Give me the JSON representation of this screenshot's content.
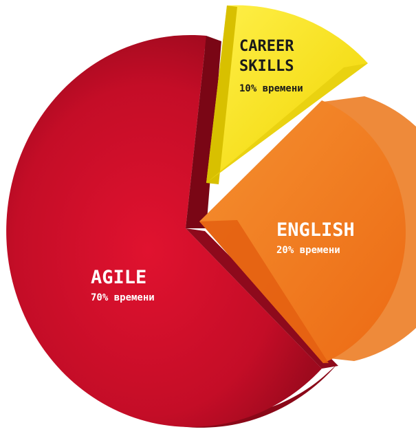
{
  "chart_data": {
    "type": "pie",
    "slices": [
      {
        "label": "AGILE",
        "sublabel": "70% времени",
        "value": 70,
        "color": "#c8102e",
        "text_color": "#ffffff"
      },
      {
        "label": "ENGLISH",
        "sublabel": "20% времени",
        "value": 20,
        "color": "#f07a1e",
        "text_color": "#ffffff"
      },
      {
        "label": "CAREER SKILLS",
        "label_lines": [
          "CAREER",
          "SKILLS"
        ],
        "sublabel": "10% времени",
        "value": 10,
        "color": "#f5e020",
        "text_color": "#1a1a1a"
      }
    ]
  }
}
